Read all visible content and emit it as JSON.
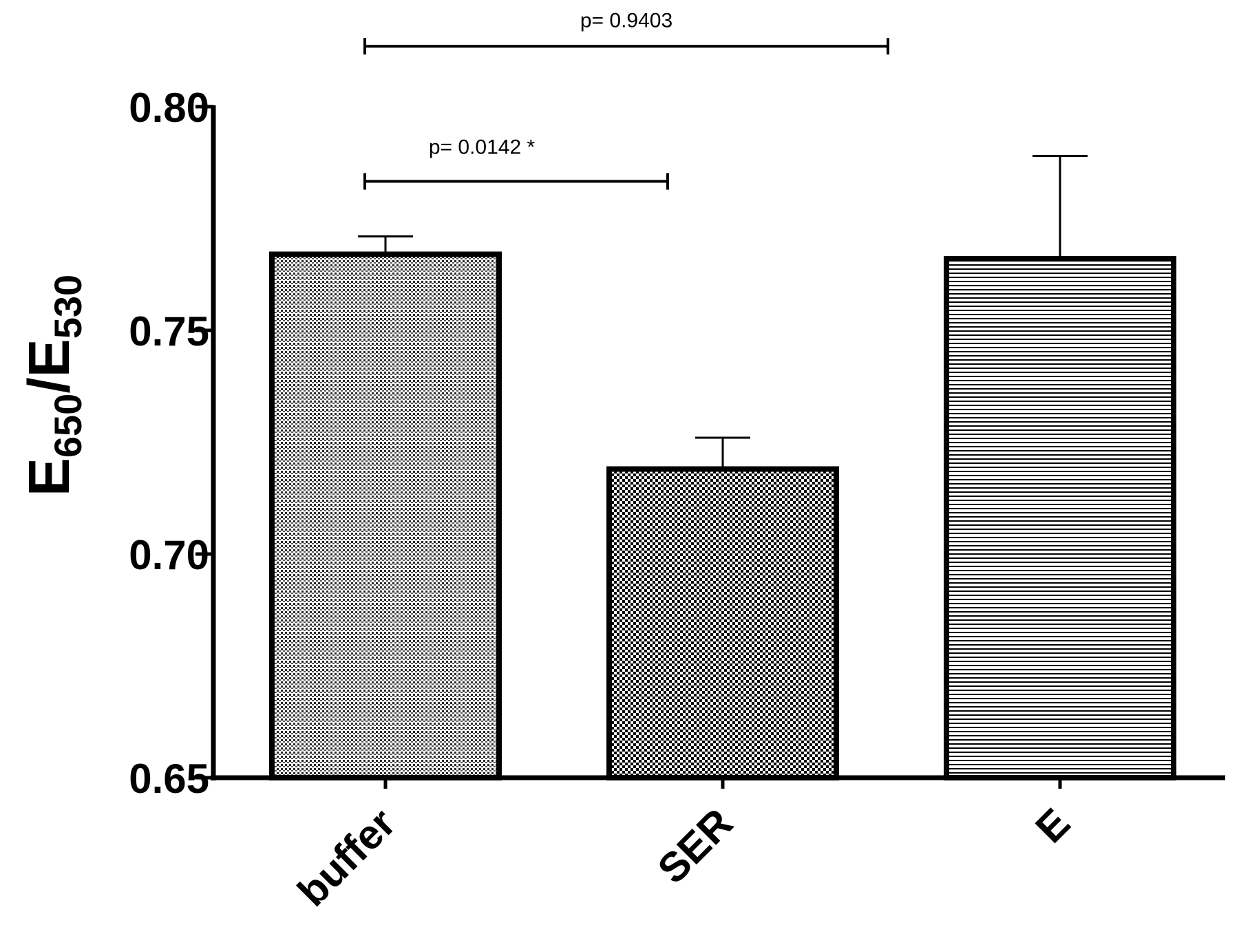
{
  "chart_data": {
    "type": "bar",
    "categories": [
      "buffer",
      "SER",
      "E"
    ],
    "values": [
      0.767,
      0.719,
      0.766
    ],
    "errors": [
      0.004,
      0.007,
      0.023
    ],
    "patterns": [
      "dense-horizontal-dots",
      "checker",
      "horizontal-lines"
    ],
    "ylabel_main": "E",
    "ylabel_sub1": "650",
    "ylabel_sep": "/E",
    "ylabel_sub2": "530",
    "xlabel": "",
    "ylim": [
      0.65,
      0.8
    ],
    "yticks": [
      0.65,
      0.7,
      0.75,
      0.8
    ],
    "ytick_labels": [
      "0.65",
      "0.70",
      "0.75",
      "0.80"
    ],
    "grid": false,
    "comparisons": [
      {
        "from": "buffer",
        "to": "SER",
        "label": "p= 0.0142 *",
        "y": 0.7833
      },
      {
        "from": "buffer",
        "to": "E",
        "label": "p= 0.9403",
        "y": 0.8135
      }
    ],
    "colors": {
      "bar_edge": "#000000",
      "fill": "#000000",
      "background": "#ffffff"
    }
  }
}
